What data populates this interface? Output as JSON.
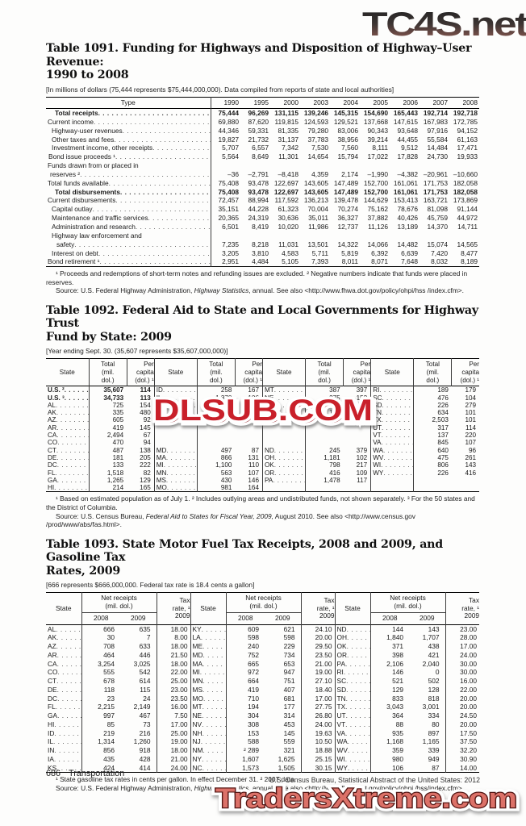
{
  "watermarks": {
    "top_right": "TC4S.net",
    "middle": "DLSUB.COM",
    "bottom": "TradersXtreme.com"
  },
  "table1091": {
    "title_line1": "Table 1091. Funding for Highways and Disposition of Highway–User Revenue:",
    "title_line2": "1990 to 2008",
    "bracket": "[In millions of dollars (75,444 represents $75,444,000,000). Data compiled from reports of state and local authorities]",
    "type_header": "Type",
    "years": [
      "1990",
      "1995",
      "2000",
      "2003",
      "2004",
      "2005",
      "2006",
      "2007",
      "2008"
    ],
    "rows": [
      {
        "label": "Total receipts",
        "ind": 11,
        "bold": true,
        "values": [
          "75,444",
          "96,269",
          "131,115",
          "139,246",
          "145,315",
          "154,690",
          "165,443",
          "192,714",
          "192,718"
        ]
      },
      {
        "label": "Current income",
        "ind": 2,
        "values": [
          "69,880",
          "87,620",
          "119,815",
          "124,593",
          "129,521",
          "137,668",
          "147,615",
          "167,983",
          "172,785"
        ]
      },
      {
        "label": "Highway-user revenues",
        "ind": 7,
        "values": [
          "44,346",
          "59,331",
          "81,335",
          "79,280",
          "83,006",
          "90,343",
          "93,648",
          "97,916",
          "94,152"
        ]
      },
      {
        "label": "Other taxes and fees",
        "ind": 7,
        "values": [
          "19,827",
          "21,732",
          "31,137",
          "37,783",
          "38,956",
          "39,214",
          "44,455",
          "55,584",
          "61,163"
        ]
      },
      {
        "label": "Investment income, other receipts",
        "ind": 7,
        "values": [
          "5,707",
          "6,557",
          "7,342",
          "7,530",
          "7,560",
          "8,111",
          "9,512",
          "14,484",
          "17,471"
        ]
      },
      {
        "label": "Bond issue proceeds ¹",
        "ind": 3,
        "values": [
          "5,564",
          "8,649",
          "11,301",
          "14,654",
          "15,794",
          "17,022",
          "17,828",
          "24,730",
          "19,933"
        ]
      },
      {
        "label": "Funds drawn from or placed in",
        "l2": "reserves ²",
        "ind": 2,
        "ind2": 5,
        "values": [
          "–36",
          "–2,791",
          "–8,418",
          "4,359",
          "2,174",
          "–1,990",
          "–4,382",
          "–20,961",
          "–10,660"
        ]
      },
      {
        "label": "Total funds available",
        "ind": 2,
        "values": [
          "75,408",
          "93,478",
          "122,697",
          "143,605",
          "147,489",
          "152,700",
          "161,061",
          "171,753",
          "182,058"
        ]
      },
      {
        "label": "Total disbursements",
        "ind": 11,
        "bold": true,
        "values": [
          "75,408",
          "93,478",
          "122,697",
          "143,605",
          "147,489",
          "152,700",
          "161,061",
          "171,753",
          "182,058"
        ]
      },
      {
        "label": "Current disbursements",
        "ind": 2,
        "values": [
          "72,457",
          "88,994",
          "117,592",
          "136,213",
          "139,478",
          "144,629",
          "153,413",
          "163,721",
          "173,869"
        ]
      },
      {
        "label": "Capital outlay",
        "ind": 7,
        "values": [
          "35,151",
          "44,228",
          "61,323",
          "70,004",
          "70,274",
          "75,162",
          "78,676",
          "81,098",
          "91,144"
        ]
      },
      {
        "label": "Maintenance and traffic services",
        "ind": 7,
        "values": [
          "20,365",
          "24,319",
          "30,636",
          "35,011",
          "36,327",
          "37,882",
          "40,426",
          "45,759",
          "44,972"
        ]
      },
      {
        "label": "Administration and research",
        "ind": 7,
        "values": [
          "6,501",
          "8,419",
          "10,020",
          "11,986",
          "12,737",
          "11,126",
          "13,189",
          "14,370",
          "14,711"
        ]
      },
      {
        "label": "Highway law enforcement and",
        "l2": "safety",
        "ind": 7,
        "ind2": 13,
        "values": [
          "7,235",
          "8,218",
          "11,031",
          "13,501",
          "14,322",
          "14,066",
          "14,482",
          "15,074",
          "14,565"
        ]
      },
      {
        "label": "Interest on debt",
        "ind": 7,
        "values": [
          "3,205",
          "3,810",
          "4,583",
          "5,711",
          "5,819",
          "6,392",
          "6,639",
          "7,420",
          "8,477"
        ]
      },
      {
        "label": "Bond retirement ¹",
        "ind": 2,
        "values": [
          "2,951",
          "4,484",
          "5,105",
          "7,393",
          "8,011",
          "8,071",
          "7,648",
          "8,032",
          "8,189"
        ]
      }
    ],
    "footnote": "¹ Proceeds and redemptions of short-term notes and refunding issues are excluded. ² Negative numbers indicate that funds were placed in reserves.",
    "source_prefix": "Source: U.S. Federal Highway Administration, ",
    "source_italic": "Highway Statistics",
    "source_suffix": ", annual. See also <http://www.fhwa.dot.gov/policy/ohpi/hss /index.cfm>."
  },
  "table1092": {
    "title_line1": "Table 1092. Federal Aid to State and Local Governments for Highway Trust",
    "title_line2": "Fund by State: 2009",
    "bracket": "[Year ending Sept. 30. (35,607 represents $35,607,000,000)]",
    "headers": {
      "state": "State",
      "total": [
        "Total",
        "(mil.",
        "dol.)"
      ],
      "per_capita": [
        "Per",
        "capita",
        "(dol.) ¹"
      ]
    },
    "groups": [
      [
        [
          "U.S. ²",
          "35,607",
          "114",
          "b"
        ],
        [
          "U.S. ³",
          "34,733",
          "113",
          "b"
        ],
        [
          "AL",
          "725",
          "154"
        ],
        [
          "AK",
          "335",
          "480"
        ],
        [
          "AZ",
          "605",
          "92"
        ],
        [
          "AR",
          "419",
          "145"
        ],
        [
          "CA",
          "2,494",
          "67"
        ],
        [
          "CO",
          "470",
          "94"
        ],
        [
          "CT",
          "487",
          "138"
        ],
        [
          "DE",
          "181",
          "205"
        ],
        [
          "DC",
          "133",
          "222"
        ],
        [
          "FL",
          "1,518",
          "82"
        ],
        [
          "GA",
          "1,265",
          "129"
        ],
        [
          "HI",
          "214",
          "165"
        ]
      ],
      [
        [
          "ID",
          "258",
          "167"
        ],
        [
          "IL",
          "1,370",
          "106"
        ],
        [
          "IN",
          "942",
          "147"
        ],
        [
          "IA",
          "453",
          "151"
        ],
        [
          "KS",
          "383",
          "136"
        ],
        [
          "",
          "",
          ""
        ],
        [
          "",
          "",
          ""
        ],
        [
          "",
          "",
          ""
        ],
        [
          "MD",
          "497",
          "87"
        ],
        [
          "MA",
          "866",
          "131"
        ],
        [
          "MI",
          "1,100",
          "110"
        ],
        [
          "MN",
          "563",
          "107"
        ],
        [
          "MS",
          "430",
          "146"
        ],
        [
          "MO",
          "981",
          "164"
        ]
      ],
      [
        [
          "MT",
          "387",
          "397"
        ],
        [
          "NE",
          "275",
          "153"
        ],
        [
          "NV",
          "374",
          "141"
        ],
        [
          "NH",
          "178",
          "134"
        ],
        [
          "NJ",
          "791",
          "91"
        ],
        [
          "",
          "",
          ""
        ],
        [
          "",
          "",
          ""
        ],
        [
          "",
          "",
          ""
        ],
        [
          "ND",
          "245",
          "379"
        ],
        [
          "OH",
          "1,181",
          "102"
        ],
        [
          "OK",
          "798",
          "217"
        ],
        [
          "OR",
          "416",
          "109"
        ],
        [
          "PA",
          "1,478",
          "117"
        ]
      ],
      [
        [
          "RI",
          "189",
          "179"
        ],
        [
          "SC",
          "476",
          "104"
        ],
        [
          "SD",
          "226",
          "279"
        ],
        [
          "TN",
          "634",
          "101"
        ],
        [
          "TX",
          "2,503",
          "101"
        ],
        [
          "UT",
          "317",
          "114"
        ],
        [
          "VT",
          "137",
          "220"
        ],
        [
          "VA",
          "845",
          "107"
        ],
        [
          "WA",
          "640",
          "96"
        ],
        [
          "WV",
          "475",
          "261"
        ],
        [
          "WI",
          "806",
          "143"
        ],
        [
          "WY",
          "226",
          "416"
        ]
      ]
    ],
    "footnote": "¹ Based on estimated population as of July 1. ² Includes outlying areas and undistributed funds, not shown separately. ³ For the 50 states and the District of Columbia.",
    "source_prefix": "Source: U.S. Census Bureau, ",
    "source_italic": "Federal Aid to States for Fiscal Year, 2009,",
    "source_suffix": " August 2010. See also <http://www.census.gov /prod/www/abs/fas.html>."
  },
  "table1093": {
    "title_line1": "Table 1093. State Motor Fuel Tax Receipts, 2008 and 2009, and Gasoline Tax",
    "title_line2": "Rates, 2009",
    "bracket": "[666 represents $666,000,000. Federal tax rate is 18.4 cents a gallon]",
    "headers": {
      "state": "State",
      "net_receipts": [
        "Net receipts",
        "(mil. dol.)"
      ],
      "year_2008": "2008",
      "year_2009": "2009",
      "tax_rate": [
        "Tax",
        "rate, ¹",
        "2009"
      ]
    },
    "groups": [
      [
        [
          "AL",
          "666",
          "635",
          "18.00"
        ],
        [
          "AK",
          "30",
          "7",
          "8.00"
        ],
        [
          "AZ",
          "708",
          "633",
          "18.00"
        ],
        [
          "AR",
          "464",
          "446",
          "21.50"
        ],
        [
          "CA",
          "3,254",
          "3,025",
          "18.00"
        ],
        [
          "CO",
          "555",
          "542",
          "22.00"
        ],
        [
          "CT",
          "678",
          "614",
          "25.00"
        ],
        [
          "DE",
          "118",
          "115",
          "23.00"
        ],
        [
          "DC",
          "23",
          "24",
          "23.50"
        ],
        [
          "FL",
          "2,215",
          "2,149",
          "16.00"
        ],
        [
          "GA",
          "997",
          "467",
          "7.50"
        ],
        [
          "HI",
          "85",
          "73",
          "17.00"
        ],
        [
          "ID",
          "219",
          "216",
          "25.00"
        ],
        [
          "IL",
          "1,314",
          "1,260",
          "19.00"
        ],
        [
          "IN",
          "856",
          "918",
          "18.00"
        ],
        [
          "IA",
          "435",
          "428",
          "21.00"
        ],
        [
          "KS",
          "424",
          "414",
          "24.00"
        ]
      ],
      [
        [
          "KY",
          "609",
          "621",
          "24.10"
        ],
        [
          "LA",
          "598",
          "598",
          "20.00"
        ],
        [
          "ME",
          "240",
          "229",
          "29.50"
        ],
        [
          "MD",
          "752",
          "734",
          "23.50"
        ],
        [
          "MA",
          "665",
          "653",
          "21.00"
        ],
        [
          "MI",
          "972",
          "947",
          "19.00"
        ],
        [
          "MN",
          "664",
          "751",
          "27.10"
        ],
        [
          "MS",
          "419",
          "407",
          "18.40"
        ],
        [
          "MO",
          "710",
          "681",
          "17.00"
        ],
        [
          "MT",
          "194",
          "177",
          "27.75"
        ],
        [
          "NE",
          "304",
          "314",
          "26.80"
        ],
        [
          "NV",
          "308",
          "453",
          "24.00"
        ],
        [
          "NH",
          "153",
          "145",
          "19.63"
        ],
        [
          "NJ",
          "588",
          "559",
          "10.50"
        ],
        [
          "NM",
          "² 289",
          "321",
          "18.88"
        ],
        [
          "NY",
          "1,607",
          "1,625",
          "25.15"
        ],
        [
          "NC",
          "1,573",
          "1,505",
          "30.15"
        ]
      ],
      [
        [
          "ND",
          "144",
          "143",
          "23.00"
        ],
        [
          "OH",
          "1,840",
          "1,707",
          "28.00"
        ],
        [
          "OK",
          "371",
          "438",
          "17.00"
        ],
        [
          "OR",
          "398",
          "421",
          "24.00"
        ],
        [
          "PA",
          "2,106",
          "2,040",
          "30.00"
        ],
        [
          "RI",
          "146",
          "0",
          "30.00"
        ],
        [
          "SC",
          "521",
          "502",
          "16.00"
        ],
        [
          "SD",
          "129",
          "128",
          "22.00"
        ],
        [
          "TN",
          "833",
          "818",
          "20.00"
        ],
        [
          "TX",
          "3,043",
          "3,001",
          "20.00"
        ],
        [
          "UT",
          "364",
          "334",
          "24.50"
        ],
        [
          "VT",
          "88",
          "80",
          "20.00"
        ],
        [
          "VA",
          "935",
          "897",
          "17.50"
        ],
        [
          "WA",
          "1,168",
          "1,165",
          "37.50"
        ],
        [
          "WV",
          "359",
          "339",
          "32.20"
        ],
        [
          "WI",
          "980",
          "949",
          "30.90"
        ],
        [
          "WY",
          "106",
          "87",
          "14.00"
        ]
      ]
    ],
    "footnote": "¹ State gasoline tax rates in cents per gallon. In effect December 31. ² 2007 data.",
    "source_prefix": "Source: U.S. Federal Highway Administration, ",
    "source_italic": "Highway Statistics",
    "source_suffix": ", annual. See also <http://www.fhwa.dot.gov/policy/ohpi /hss/index.cfm>."
  },
  "footer": {
    "page_number": "686",
    "section": "Transportation",
    "credit": "U.S. Census Bureau, Statistical Abstract of the United States: 2012"
  }
}
